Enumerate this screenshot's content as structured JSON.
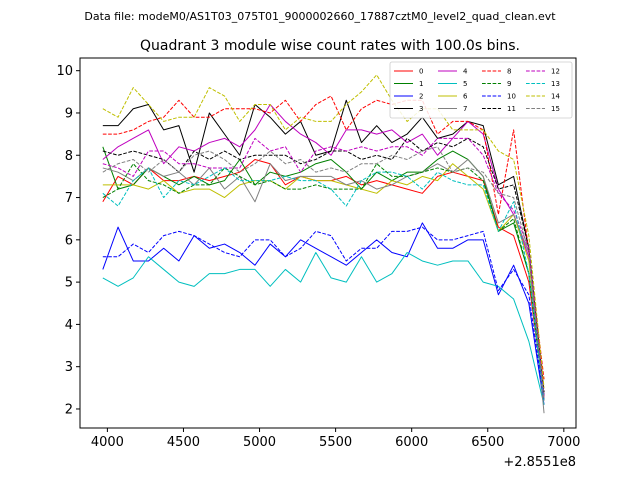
{
  "figure": {
    "suptitle": "Data file: modeM0/AS1T03_075T01_9000002660_17887cztM0_level2_quad_clean.evt",
    "offset_label": "+2.8551e8"
  },
  "chart_data": {
    "type": "line",
    "title": "Quadrant 3 module wise count rates with 100.0s bins.",
    "xlabel": "",
    "ylabel": "",
    "x_offset": 285510000,
    "xlim": [
      3820,
      7080
    ],
    "ylim": [
      1.55,
      10.3
    ],
    "xticks": [
      4000,
      4500,
      5000,
      5500,
      6000,
      6500,
      7000
    ],
    "yticks": [
      2,
      3,
      4,
      5,
      6,
      7,
      8,
      9,
      10
    ],
    "legend_position": "top-right",
    "x": [
      3970,
      4070,
      4170,
      4270,
      4370,
      4470,
      4570,
      4670,
      4770,
      4870,
      4970,
      5070,
      5170,
      5270,
      5370,
      5470,
      5570,
      5670,
      5770,
      5870,
      5970,
      6070,
      6170,
      6270,
      6370,
      6470,
      6570,
      6670,
      6770,
      6870
    ],
    "series": [
      {
        "name": "0",
        "color": "#ff0000",
        "dash": false,
        "values": [
          6.9,
          7.5,
          7.3,
          7.7,
          7.4,
          7.4,
          7.5,
          7.4,
          7.5,
          7.6,
          7.9,
          7.8,
          7.3,
          7.5,
          7.4,
          7.4,
          7.5,
          7.3,
          7.4,
          7.3,
          7.2,
          7.1,
          7.5,
          7.6,
          7.5,
          7.4,
          6.3,
          6.1,
          5.0,
          2.3
        ]
      },
      {
        "name": "1",
        "color": "#008000",
        "dash": false,
        "values": [
          8.2,
          7.2,
          7.3,
          7.7,
          7.5,
          7.3,
          7.5,
          7.3,
          7.4,
          7.9,
          7.3,
          7.6,
          7.5,
          7.6,
          7.8,
          7.9,
          7.6,
          7.2,
          7.6,
          7.4,
          7.6,
          7.6,
          7.9,
          8.1,
          7.9,
          7.5,
          6.2,
          6.4,
          5.2,
          2.2
        ]
      },
      {
        "name": "2",
        "color": "#0000ff",
        "dash": false,
        "values": [
          5.3,
          6.3,
          5.5,
          5.5,
          5.8,
          5.5,
          6.1,
          5.8,
          5.9,
          5.7,
          5.4,
          5.9,
          5.6,
          6.0,
          5.8,
          5.6,
          5.4,
          5.7,
          6.0,
          5.7,
          5.6,
          6.4,
          5.8,
          5.8,
          6.0,
          6.0,
          4.7,
          5.4,
          4.5,
          2.1
        ]
      },
      {
        "name": "3",
        "color": "#000000",
        "dash": false,
        "values": [
          8.7,
          8.7,
          9.1,
          9.2,
          8.6,
          8.7,
          7.6,
          9.0,
          8.5,
          8.0,
          9.2,
          8.9,
          8.5,
          8.8,
          8.0,
          8.1,
          9.3,
          8.3,
          8.7,
          8.3,
          8.5,
          8.9,
          8.4,
          8.5,
          8.8,
          8.7,
          7.3,
          7.5,
          5.8,
          2.3
        ]
      },
      {
        "name": "4",
        "color": "#bf00bf",
        "dash": false,
        "values": [
          7.9,
          8.2,
          8.4,
          8.6,
          7.8,
          8.2,
          8.1,
          8.3,
          8.4,
          8.2,
          8.6,
          9.2,
          8.8,
          8.5,
          8.3,
          8.0,
          8.6,
          8.6,
          8.5,
          8.6,
          8.3,
          8.5,
          8.0,
          8.4,
          8.8,
          8.5,
          7.2,
          6.6,
          5.6,
          2.2
        ]
      },
      {
        "name": "5",
        "color": "#00bfbf",
        "dash": false,
        "values": [
          5.1,
          4.9,
          5.1,
          5.6,
          5.3,
          5.0,
          4.9,
          5.2,
          5.2,
          5.3,
          5.3,
          4.9,
          5.3,
          5.0,
          5.7,
          5.1,
          5.0,
          5.6,
          5.0,
          5.2,
          5.7,
          5.5,
          5.4,
          5.5,
          5.5,
          5.0,
          4.9,
          4.6,
          3.6,
          2.1
        ]
      },
      {
        "name": "6",
        "color": "#bfbf00",
        "dash": false,
        "values": [
          7.3,
          7.3,
          7.3,
          7.2,
          7.4,
          7.1,
          7.2,
          7.2,
          7.0,
          7.3,
          7.4,
          7.4,
          7.2,
          7.5,
          7.4,
          7.4,
          7.3,
          7.2,
          7.1,
          7.4,
          7.3,
          7.5,
          7.4,
          7.8,
          7.5,
          7.2,
          6.2,
          6.6,
          5.5,
          2.2
        ]
      },
      {
        "name": "7",
        "color": "#808080",
        "dash": false,
        "values": [
          7.7,
          7.6,
          7.4,
          7.7,
          7.5,
          7.6,
          7.3,
          7.7,
          7.2,
          7.5,
          6.9,
          7.8,
          7.4,
          7.5,
          7.5,
          7.5,
          7.3,
          7.4,
          7.2,
          7.3,
          7.5,
          7.6,
          7.8,
          7.6,
          7.9,
          7.5,
          6.4,
          6.6,
          5.7,
          1.9
        ]
      },
      {
        "name": "8",
        "color": "#ff0000",
        "dash": true,
        "values": [
          8.5,
          8.5,
          8.6,
          8.8,
          8.9,
          9.3,
          8.9,
          8.9,
          9.1,
          9.1,
          9.1,
          9.0,
          9.3,
          8.8,
          9.2,
          9.4,
          8.6,
          9.1,
          9.3,
          9.2,
          9.3,
          9.3,
          8.5,
          8.8,
          8.8,
          8.6,
          6.6,
          8.6,
          5.7,
          2.7
        ]
      },
      {
        "name": "9",
        "color": "#008000",
        "dash": true,
        "values": [
          7.0,
          7.2,
          7.8,
          7.4,
          7.3,
          7.1,
          7.3,
          7.3,
          7.7,
          7.5,
          7.3,
          7.4,
          7.2,
          7.2,
          7.3,
          7.2,
          7.2,
          7.2,
          7.8,
          7.5,
          7.5,
          7.6,
          7.7,
          7.6,
          7.7,
          7.4,
          6.2,
          6.5,
          5.2,
          2.3
        ]
      },
      {
        "name": "10",
        "color": "#0000ff",
        "dash": true,
        "values": [
          5.6,
          5.6,
          5.9,
          5.7,
          6.1,
          6.2,
          6.1,
          5.9,
          5.7,
          5.6,
          6.0,
          6.0,
          5.6,
          5.8,
          6.2,
          6.1,
          5.5,
          5.8,
          5.8,
          6.2,
          6.2,
          6.3,
          6.0,
          6.0,
          6.1,
          6.2,
          4.8,
          5.3,
          4.7,
          2.2
        ]
      },
      {
        "name": "11",
        "color": "#000000",
        "dash": true,
        "values": [
          8.1,
          8.0,
          8.1,
          8.0,
          7.9,
          7.6,
          8.1,
          7.9,
          8.1,
          7.9,
          8.0,
          8.0,
          8.0,
          7.8,
          7.9,
          8.1,
          8.1,
          7.9,
          8.0,
          7.9,
          8.4,
          8.1,
          8.3,
          8.2,
          8.4,
          8.2,
          7.2,
          7.3,
          5.8,
          2.4
        ]
      },
      {
        "name": "12",
        "color": "#bf00bf",
        "dash": true,
        "values": [
          7.8,
          7.7,
          7.5,
          8.1,
          8.1,
          7.8,
          7.8,
          7.7,
          7.7,
          7.7,
          8.4,
          8.1,
          8.2,
          7.6,
          8.1,
          8.2,
          8.1,
          8.2,
          8.1,
          8.2,
          8.2,
          8.0,
          8.4,
          8.4,
          8.4,
          8.0,
          7.1,
          6.7,
          5.8,
          2.3
        ]
      },
      {
        "name": "13",
        "color": "#00bfbf",
        "dash": true,
        "values": [
          7.1,
          6.8,
          7.4,
          7.7,
          7.0,
          7.4,
          7.3,
          7.5,
          7.7,
          7.4,
          7.4,
          7.4,
          7.5,
          7.4,
          7.4,
          7.2,
          6.8,
          7.4,
          7.6,
          7.6,
          7.5,
          7.2,
          7.6,
          7.4,
          7.3,
          7.3,
          6.2,
          6.9,
          5.2,
          2.2
        ]
      },
      {
        "name": "14",
        "color": "#bfbf00",
        "dash": true,
        "values": [
          9.1,
          8.9,
          9.6,
          9.2,
          8.8,
          8.9,
          8.9,
          9.6,
          9.4,
          8.8,
          9.2,
          9.2,
          8.6,
          8.9,
          8.8,
          8.8,
          9.2,
          9.5,
          9.9,
          9.3,
          8.8,
          9.1,
          9.1,
          8.6,
          8.6,
          8.6,
          8.1,
          7.9,
          6.1,
          2.5
        ]
      },
      {
        "name": "15",
        "color": "#808080",
        "dash": true,
        "values": [
          7.6,
          7.8,
          7.9,
          7.6,
          7.9,
          7.6,
          8.0,
          8.1,
          7.9,
          7.6,
          7.8,
          8.1,
          7.8,
          7.9,
          7.6,
          7.7,
          7.6,
          7.8,
          7.8,
          8.0,
          7.9,
          8.1,
          8.2,
          7.6,
          7.7,
          7.6,
          7.1,
          7.0,
          5.7,
          2.2
        ]
      }
    ]
  }
}
